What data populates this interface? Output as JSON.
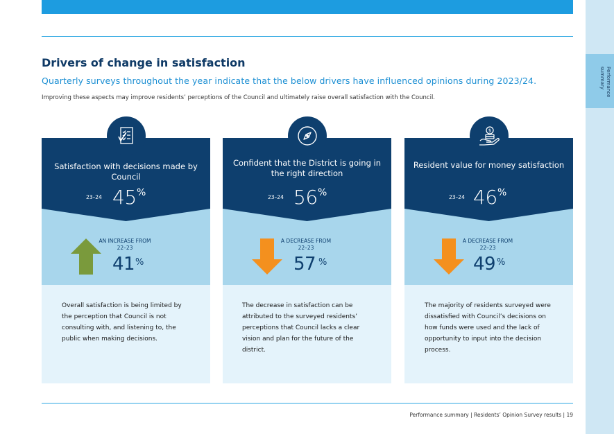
{
  "sidebar": {
    "tab_label": "Performance summary"
  },
  "heading": "Drivers of change in satisfaction",
  "subheading": "Quarterly surveys throughout the year indicate that the below drivers have influenced opinions during 2023/24.",
  "intro": "Improving these aspects may improve residents’ perceptions of the Council and ultimately raise overall satisfaction with the Council.",
  "cards": [
    {
      "icon": "checklist-icon",
      "title": "Satisfaction with decisions made by Council",
      "year": "23–24",
      "value": "45",
      "pct": "%",
      "change": "AN INCREASE FROM 22–23",
      "change_direction": "up",
      "prev_value": "41",
      "prev_pct": "%",
      "text": "Overall satisfaction is being limited by the perception that Council is not consulting with, and listening to, the public when making decisions."
    },
    {
      "icon": "compass-icon",
      "title": "Confident that the District is going in the right direction",
      "year": "23–24",
      "value": "56",
      "pct": "%",
      "change": "A DECREASE FROM 22–23",
      "change_direction": "down",
      "prev_value": "57",
      "prev_pct": "%",
      "text": "The decrease in satisfaction can be attributed to the surveyed residents’ perceptions that Council lacks a clear vision and plan for the future of the district."
    },
    {
      "icon": "money-hand-icon",
      "title": "Resident value for money satisfaction",
      "year": "23–24",
      "value": "46",
      "pct": "%",
      "change": "A DECREASE FROM 22–23",
      "change_direction": "down",
      "prev_value": "49",
      "prev_pct": "%",
      "text": "The majority of residents surveyed were dissatisfied with Council’s decisions on how funds were used and the lack of opportunity to input into the decision process."
    }
  ],
  "colors": {
    "up_arrow": "#7a9a3c",
    "down_arrow": "#f4901e",
    "navy": "#0e3f6e",
    "accent_blue": "#1d9ce0"
  },
  "footer": "Performance summary | Residents’ Opinion Survey results | 19"
}
